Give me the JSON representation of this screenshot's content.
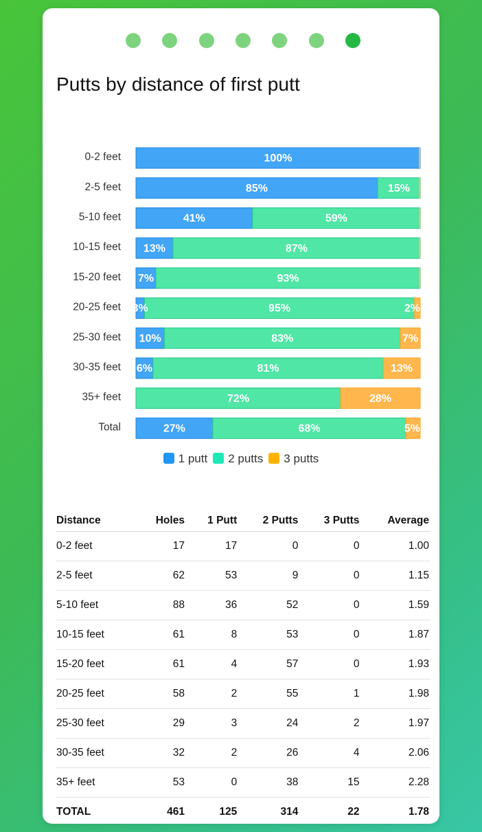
{
  "pagination": {
    "count": 7,
    "active_index": 6
  },
  "title": "Putts by distance of first putt",
  "colors": {
    "one_putt": "#42a5f5",
    "two_putts": "#4fe6a6",
    "three_putts": "#ffb74d",
    "legend_one_putt": "#2196f3",
    "legend_two_putts": "#1de9b6",
    "legend_three_putts": "#ffb300",
    "dot": "#7ed47e",
    "dot_active": "#26b844"
  },
  "chart_data": {
    "type": "bar",
    "orientation": "horizontal",
    "stacked": true,
    "percent": true,
    "categories": [
      "0-2 feet",
      "2-5 feet",
      "5-10 feet",
      "10-15 feet",
      "15-20 feet",
      "20-25 feet",
      "25-30 feet",
      "30-35 feet",
      "35+ feet",
      "Total"
    ],
    "series": [
      {
        "name": "1 putt",
        "values": [
          100,
          85,
          41,
          13,
          7,
          3,
          10,
          6,
          0,
          27
        ],
        "labels": [
          "100%",
          "85%",
          "41%",
          "13%",
          "7%",
          "3%",
          "10%",
          "6%",
          "",
          "27%"
        ]
      },
      {
        "name": "2 putts",
        "values": [
          0,
          15,
          59,
          87,
          93,
          95,
          83,
          81,
          72,
          68
        ],
        "labels": [
          "",
          "15%",
          "59%",
          "87%",
          "93%",
          "95%",
          "83%",
          "81%",
          "72%",
          "68%"
        ]
      },
      {
        "name": "3 putts",
        "values": [
          0,
          0,
          0,
          0,
          0,
          2,
          7,
          13,
          28,
          5
        ],
        "labels": [
          "",
          "",
          "",
          "",
          "",
          "2%",
          "7%",
          "13%",
          "28%",
          "5%"
        ]
      }
    ],
    "xlim": [
      0,
      100
    ],
    "grid": false,
    "legend_position": "bottom"
  },
  "legend": [
    {
      "label": "1 putt",
      "color": "#2196f3"
    },
    {
      "label": "2 putts",
      "color": "#1de9b6"
    },
    {
      "label": "3 putts",
      "color": "#ffb300"
    }
  ],
  "table": {
    "headers": [
      "Distance",
      "Holes",
      "1 Putt",
      "2 Putts",
      "3 Putts",
      "Average"
    ],
    "rows": [
      [
        "0-2 feet",
        "17",
        "17",
        "0",
        "0",
        "1.00"
      ],
      [
        "2-5 feet",
        "62",
        "53",
        "9",
        "0",
        "1.15"
      ],
      [
        "5-10 feet",
        "88",
        "36",
        "52",
        "0",
        "1.59"
      ],
      [
        "10-15 feet",
        "61",
        "8",
        "53",
        "0",
        "1.87"
      ],
      [
        "15-20 feet",
        "61",
        "4",
        "57",
        "0",
        "1.93"
      ],
      [
        "20-25 feet",
        "58",
        "2",
        "55",
        "1",
        "1.98"
      ],
      [
        "25-30 feet",
        "29",
        "3",
        "24",
        "2",
        "1.97"
      ],
      [
        "30-35 feet",
        "32",
        "2",
        "26",
        "4",
        "2.06"
      ],
      [
        "35+ feet",
        "53",
        "0",
        "38",
        "15",
        "2.28"
      ]
    ],
    "total": [
      "TOTAL",
      "461",
      "125",
      "314",
      "22",
      "1.78"
    ]
  }
}
